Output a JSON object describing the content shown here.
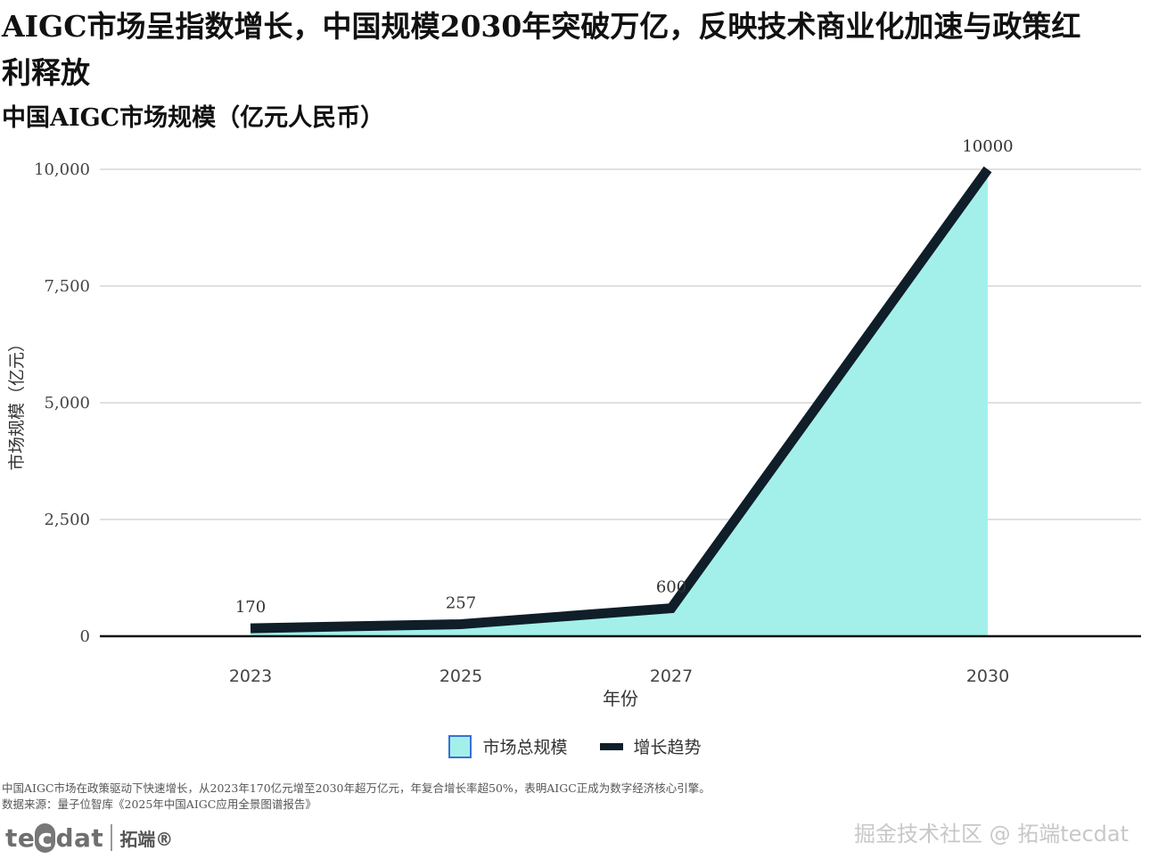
{
  "headline": "AIGC市场呈指数增长，中国规模2030年突破万亿，反映技术商业化加速与政策红利释放",
  "chart_data": {
    "type": "area",
    "title": "中国AIGC市场规模（亿元人民币）",
    "xlabel": "年份",
    "ylabel": "市场规模（亿元）",
    "x": [
      "2023",
      "2025",
      "2027",
      "2030"
    ],
    "ylim": [
      0,
      10000
    ],
    "y_ticks": [
      "0",
      "2,500",
      "5,000",
      "7,500",
      "10,000"
    ],
    "series": [
      {
        "name": "市场总规模",
        "kind": "area",
        "values": [
          170,
          257,
          600,
          10000
        ],
        "color": "#a3f0ea"
      },
      {
        "name": "增长趋势",
        "kind": "line",
        "values": [
          170,
          257,
          600,
          10000
        ],
        "color": "#0f1e29"
      }
    ],
    "data_labels": [
      "170",
      "257",
      "600",
      "10000"
    ],
    "grid": true,
    "legend_position": "bottom-center"
  },
  "legend": {
    "area_label": "市场总规模",
    "line_label": "增长趋势"
  },
  "footer": {
    "note": "中国AIGC市场在政策驱动下快速增长，从2023年170亿元增至2030年超万亿元，年复合增长率超50%，表明AIGC正成为数字经济核心引擎。",
    "source": "数据来源：量子位智库《2025年中国AIGC应用全景图谱报告》"
  },
  "logo": {
    "prefix": "te",
    "highlight": "c",
    "suffix": "dat",
    "cn": "拓端®"
  },
  "watermark": "掘金技术社区 @ 拓端tecdat"
}
